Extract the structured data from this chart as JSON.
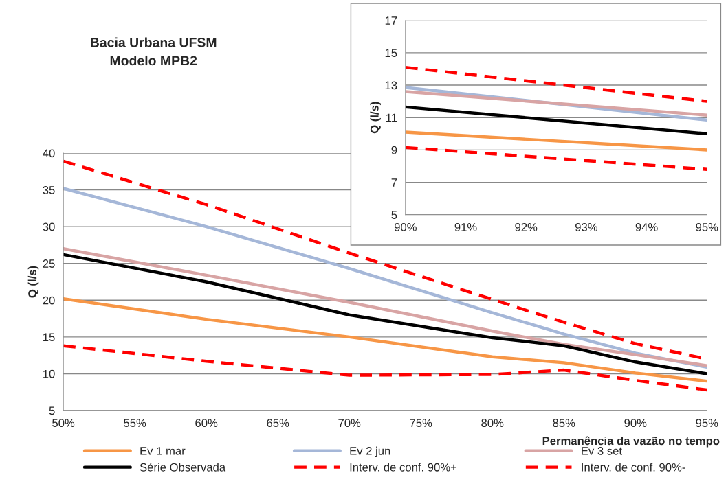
{
  "chart_data": [
    {
      "type": "line",
      "title": "Bacia Urbana UFSM\nModelo MPB2",
      "xlabel": "Permanência da vazão no tempo",
      "ylabel": "Q (l/s)",
      "x": [
        50,
        60,
        70,
        80,
        85,
        90,
        95
      ],
      "series": [
        {
          "name": "Ev 1 mar",
          "color": "#f79646",
          "values": [
            20.2,
            17.4,
            15.0,
            12.3,
            11.5,
            10.1,
            9.0
          ]
        },
        {
          "name": "Ev 2 jun",
          "color": "#a5b7d8",
          "values": [
            35.2,
            30.0,
            24.3,
            18.3,
            15.4,
            12.8,
            10.9
          ]
        },
        {
          "name": "Ev 3 set",
          "color": "#d8a4a4",
          "values": [
            27.0,
            23.4,
            19.7,
            15.8,
            14.0,
            12.6,
            11.1
          ]
        },
        {
          "name": "Série Observada",
          "color": "#000000",
          "values": [
            26.2,
            22.5,
            18.0,
            14.9,
            13.8,
            11.6,
            10.0
          ]
        },
        {
          "name": "Interv. de conf. 90%+",
          "color": "#ff0000",
          "line_style": "dashed",
          "values": [
            38.9,
            33.0,
            26.4,
            20.1,
            17.0,
            14.1,
            12.0
          ]
        },
        {
          "name": "Interv. de conf. 90%-",
          "color": "#ff0000",
          "line_style": "dashed",
          "values": [
            13.8,
            11.7,
            9.8,
            9.9,
            10.5,
            9.1,
            7.8
          ]
        }
      ],
      "xlim": [
        50,
        95
      ],
      "xticks": [
        {
          "value": 50,
          "label": "50%"
        },
        {
          "value": 55,
          "label": "55%"
        },
        {
          "value": 60,
          "label": "60%"
        },
        {
          "value": 65,
          "label": "65%"
        },
        {
          "value": 70,
          "label": "70%"
        },
        {
          "value": 75,
          "label": "75%"
        },
        {
          "value": 80,
          "label": "80%"
        },
        {
          "value": 85,
          "label": "85%"
        },
        {
          "value": 90,
          "label": "90%"
        },
        {
          "value": 95,
          "label": "95%"
        }
      ],
      "ylim": [
        5,
        40
      ],
      "yticks": [
        5,
        10,
        15,
        20,
        25,
        30,
        35,
        40
      ],
      "grid": "y",
      "legend": "bottom",
      "marker": "none",
      "line_style": "solid"
    },
    {
      "type": "line",
      "ylabel": "Q (l/s)",
      "x": [
        90,
        95
      ],
      "series": [
        {
          "color": "#f79646",
          "values": [
            10.1,
            9.0
          ]
        },
        {
          "color": "#a5b7d8",
          "values": [
            12.85,
            10.85
          ]
        },
        {
          "color": "#d8a4a4",
          "values": [
            12.6,
            11.15
          ]
        },
        {
          "color": "#000000",
          "values": [
            11.65,
            10.0
          ]
        },
        {
          "color": "#ff0000",
          "line_style": "dashed",
          "values": [
            14.1,
            12.0
          ]
        },
        {
          "color": "#ff0000",
          "line_style": "dashed",
          "values": [
            9.15,
            7.8
          ]
        }
      ],
      "xlim": [
        90,
        95
      ],
      "xticks": [
        {
          "value": 90,
          "label": "90%"
        },
        {
          "value": 91,
          "label": "91%"
        },
        {
          "value": 92,
          "label": "92%"
        },
        {
          "value": 93,
          "label": "93%"
        },
        {
          "value": 94,
          "label": "94%"
        },
        {
          "value": 95,
          "label": "95%"
        }
      ],
      "ylim": [
        5,
        17
      ],
      "yticks": [
        5,
        7,
        9,
        11,
        13,
        15,
        17
      ],
      "grid": "y",
      "marker": "none",
      "line_style": "solid"
    }
  ]
}
